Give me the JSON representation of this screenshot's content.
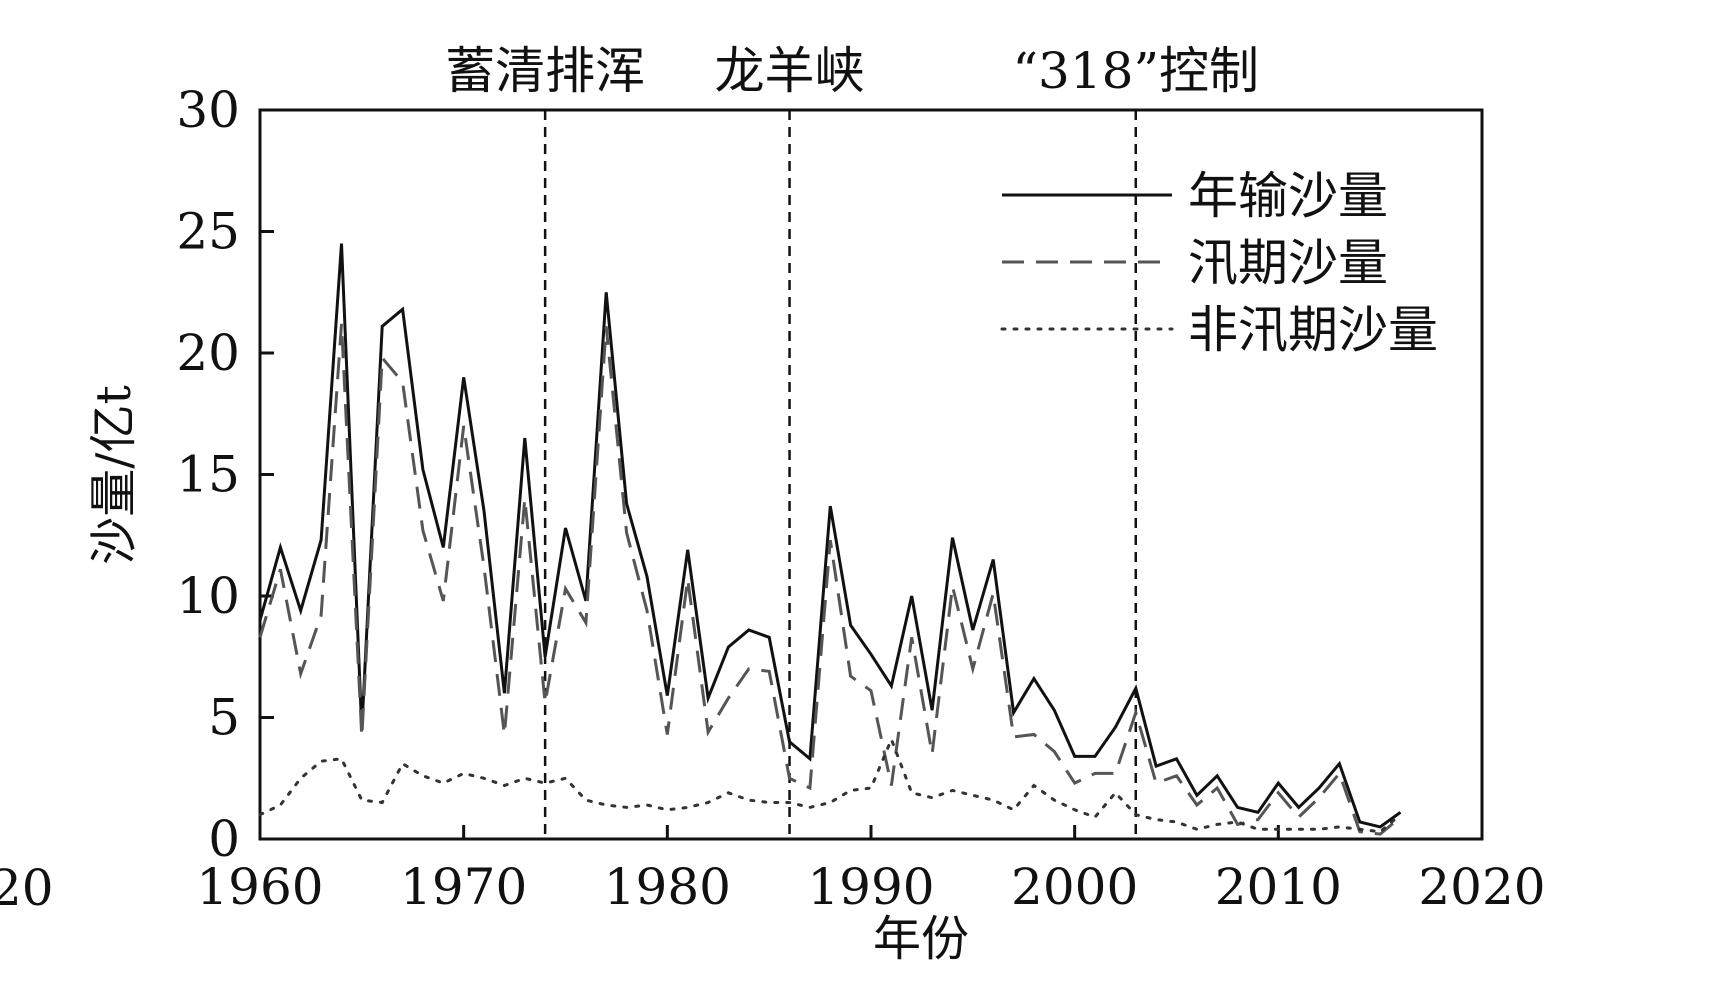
{
  "chart_data": {
    "type": "line",
    "xlabel": "年份",
    "ylabel": "沙量/亿t",
    "xlim": [
      1960,
      2020
    ],
    "ylim": [
      0,
      30
    ],
    "xticks": [
      "1960",
      "1970",
      "1980",
      "1990",
      "2000",
      "2010",
      "2020"
    ],
    "yticks": [
      "0",
      "5",
      "10",
      "15",
      "20",
      "25",
      "30"
    ],
    "edge_fragment": "20",
    "grid": false,
    "legend_position": "top-right",
    "events": [
      {
        "year": 1974,
        "label": "蓄清排浑"
      },
      {
        "year": 1986,
        "label": "龙羊峡"
      },
      {
        "year": 2003,
        "label": "“318”控制"
      }
    ],
    "x": [
      1960,
      1961,
      1962,
      1963,
      1964,
      1965,
      1966,
      1967,
      1968,
      1969,
      1970,
      1971,
      1972,
      1973,
      1974,
      1975,
      1976,
      1977,
      1978,
      1979,
      1980,
      1981,
      1982,
      1983,
      1984,
      1985,
      1986,
      1987,
      1988,
      1989,
      1990,
      1991,
      1992,
      1993,
      1994,
      1995,
      1996,
      1997,
      1998,
      1999,
      2000,
      2001,
      2002,
      2003,
      2004,
      2005,
      2006,
      2007,
      2008,
      2009,
      2010,
      2011,
      2012,
      2013,
      2014,
      2015,
      2016
    ],
    "series": [
      {
        "name": "年输沙量",
        "style": "solid",
        "color": "#111111",
        "values": [
          9.0,
          12.0,
          9.4,
          12.3,
          24.5,
          4.5,
          21.1,
          21.8,
          15.2,
          12.0,
          19.0,
          13.5,
          6.0,
          16.5,
          7.5,
          12.8,
          9.8,
          22.5,
          13.8,
          10.8,
          5.9,
          11.9,
          5.8,
          7.9,
          8.6,
          8.3,
          4.0,
          3.3,
          13.7,
          8.8,
          7.6,
          6.3,
          10.0,
          5.3,
          12.4,
          8.6,
          11.5,
          5.2,
          6.6,
          5.3,
          3.4,
          3.4,
          4.6,
          6.2,
          3.0,
          3.3,
          1.8,
          2.6,
          1.3,
          1.1,
          2.3,
          1.3,
          2.1,
          3.1,
          0.7,
          0.5,
          1.1
        ]
      },
      {
        "name": "汛期沙量",
        "style": "dashed",
        "color": "#555555",
        "values": [
          8.3,
          11.1,
          6.8,
          9.2,
          21.2,
          4.2,
          19.8,
          18.8,
          12.7,
          9.8,
          17.0,
          11.2,
          4.3,
          14.0,
          5.6,
          10.3,
          8.9,
          21.1,
          12.6,
          9.4,
          4.3,
          10.7,
          4.4,
          5.8,
          7.0,
          6.9,
          2.5,
          2.1,
          12.3,
          6.7,
          6.1,
          2.2,
          8.3,
          3.5,
          10.4,
          7.0,
          10.1,
          4.2,
          4.3,
          3.6,
          2.3,
          2.7,
          2.7,
          5.2,
          2.3,
          2.6,
          1.4,
          2.1,
          0.6,
          0.8,
          1.9,
          0.9,
          1.7,
          2.7,
          0.3,
          0.2,
          0.9
        ]
      },
      {
        "name": "非汛期沙量",
        "style": "dotted",
        "color": "#333333",
        "values": [
          1.0,
          1.4,
          2.5,
          3.2,
          3.3,
          1.6,
          1.5,
          3.1,
          2.6,
          2.3,
          2.7,
          2.5,
          2.2,
          2.5,
          2.3,
          2.5,
          1.6,
          1.4,
          1.3,
          1.4,
          1.2,
          1.3,
          1.5,
          1.9,
          1.6,
          1.5,
          1.5,
          1.3,
          1.5,
          2.0,
          2.1,
          4.1,
          1.9,
          1.7,
          2.0,
          1.8,
          1.6,
          1.2,
          2.2,
          1.6,
          1.2,
          0.9,
          1.9,
          1.0,
          0.8,
          0.7,
          0.4,
          0.6,
          0.7,
          0.4,
          0.4,
          0.4,
          0.4,
          0.5,
          0.4,
          0.3,
          1.0
        ]
      }
    ]
  }
}
